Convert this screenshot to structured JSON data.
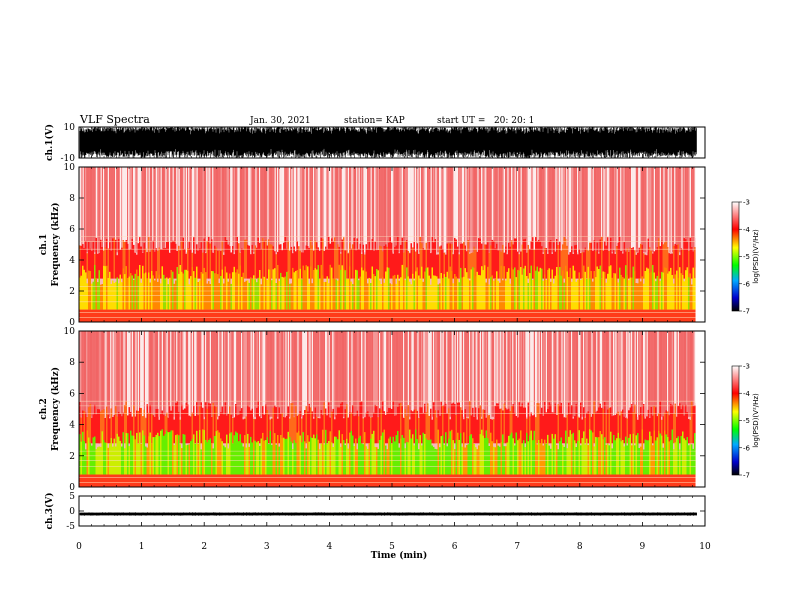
{
  "header": {
    "title": "VLF Spectra",
    "date": "Jan. 30, 2021",
    "station": "station= KAP",
    "start": "start UT =   20: 20: 1"
  },
  "chart_data": [
    {
      "type": "line",
      "name": "ch1-waveform",
      "ylabel": "ch.1(V)",
      "ylim": [
        -10,
        10
      ],
      "yticks": [
        "10",
        "-10"
      ],
      "xlim": [
        0,
        10
      ],
      "description_color": "#000000"
    },
    {
      "type": "heatmap",
      "name": "ch1-spectrogram",
      "ylabel": "ch.1\nFrequency (kHz)",
      "ylabel_line1": "ch.1",
      "ylabel_line2": "Frequency (kHz)",
      "ylim": [
        0,
        10
      ],
      "yticks": [
        "0",
        "2",
        "4",
        "6",
        "8",
        "10"
      ],
      "xlim": [
        0,
        10
      ],
      "data_end_min": 9.85,
      "colorbar": {
        "label": "log(PSD)(V²/Hz)",
        "ticks": [
          "-3",
          "-4",
          "-5",
          "-6",
          "-7"
        ],
        "range": [
          -7,
          -3
        ]
      }
    },
    {
      "type": "heatmap",
      "name": "ch2-spectrogram",
      "ylabel_line1": "ch.2",
      "ylabel_line2": "Frequency (kHz)",
      "ylim": [
        0,
        10
      ],
      "yticks": [
        "0",
        "2",
        "4",
        "6",
        "8",
        "10"
      ],
      "xlim": [
        0,
        10
      ],
      "data_end_min": 9.85,
      "colorbar": {
        "label": "log(PSD)(V²/Hz)",
        "ticks": [
          "-3",
          "-4",
          "-5",
          "-6",
          "-7"
        ],
        "range": [
          -7,
          -3
        ]
      }
    },
    {
      "type": "line",
      "name": "ch3-waveform",
      "ylabel": "ch.3(V)",
      "ylim": [
        -5,
        5
      ],
      "yticks": [
        "5",
        "0",
        "-5"
      ],
      "xlim": [
        0,
        10
      ],
      "level": -1.0
    }
  ],
  "xaxis": {
    "label": "Time (min)",
    "ticks": [
      "0",
      "1",
      "2",
      "3",
      "4",
      "5",
      "6",
      "7",
      "8",
      "9",
      "10"
    ]
  },
  "colorscale": [
    "#000000",
    "#0000ff",
    "#00ffff",
    "#00ff00",
    "#ffff00",
    "#ff0000",
    "#ffffff"
  ]
}
